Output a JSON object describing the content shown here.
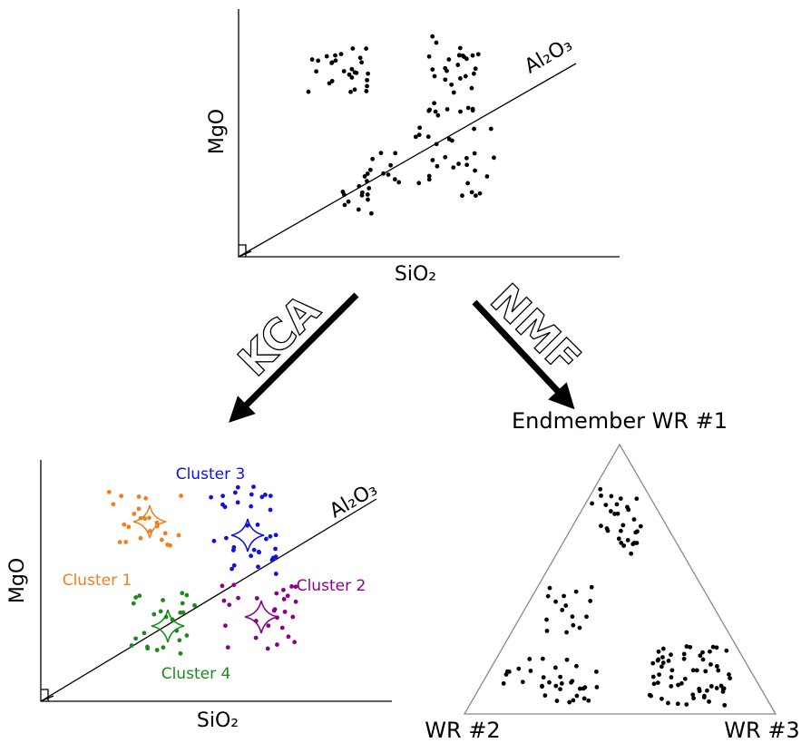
{
  "top_plot": {
    "y_label": "MgO",
    "x_label": "SiO₂",
    "line_label": "Al₂O₃"
  },
  "arrows": {
    "left": "KCA",
    "right": "NMF"
  },
  "cluster_plot": {
    "y_label": "MgO",
    "x_label": "SiO₂",
    "line_label": "Al₂O₃",
    "clusters": [
      "Cluster 1",
      "Cluster 2",
      "Cluster 3",
      "Cluster 4"
    ]
  },
  "ternary": {
    "top": "Endmember WR #1",
    "left": "WR #2",
    "right": "WR #3"
  }
}
